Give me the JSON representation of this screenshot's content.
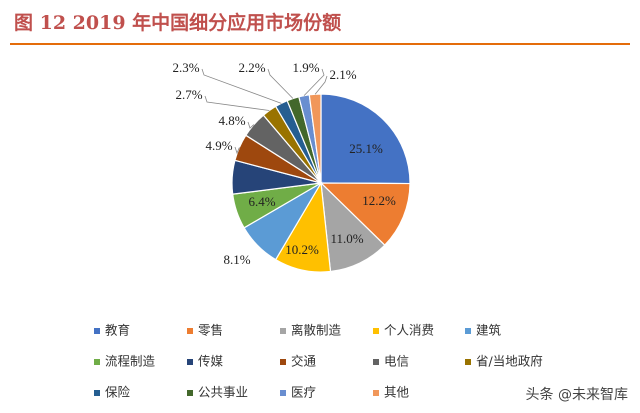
{
  "chart_data": {
    "type": "pie",
    "title": "图 12 2019 年中国细分应用市场份额",
    "watermark": "头条 @未来智库",
    "categories": [
      "教育",
      "零售",
      "离散制造",
      "个人消费",
      "建筑",
      "流程制造",
      "传媒",
      "交通",
      "电信",
      "省/当地政府",
      "保险",
      "公共事业",
      "医疗",
      "其他"
    ],
    "values": [
      25.1,
      12.2,
      11.0,
      10.2,
      8.1,
      6.4,
      6.1,
      4.9,
      4.8,
      2.7,
      2.3,
      2.2,
      1.9,
      2.1
    ],
    "value_labels": [
      "25.1%",
      "12.2%",
      "11.0%",
      "10.2%",
      "8.1%",
      "6.4%",
      null,
      "4.9%",
      "4.8%",
      "2.7%",
      "2.3%",
      "2.2%",
      "1.9%",
      "2.1%"
    ],
    "colors": [
      "#4472C4",
      "#ED7D31",
      "#A5A5A5",
      "#FFC000",
      "#5B9BD5",
      "#70AD47",
      "#264478",
      "#9E480E",
      "#636363",
      "#997300",
      "#255E91",
      "#43682B",
      "#698ED0",
      "#F1975A"
    ],
    "legend": "bottom"
  }
}
